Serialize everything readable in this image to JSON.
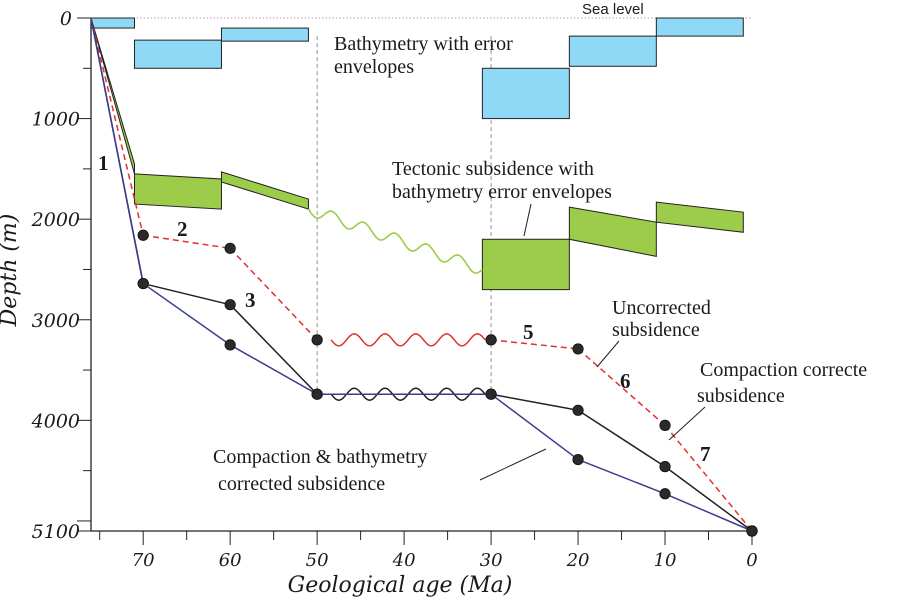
{
  "chart_data": {
    "type": "line",
    "xlabel": "Geological age (Ma)",
    "ylabel": "Depth (m)",
    "xlim": [
      76,
      0
    ],
    "ylim": [
      0,
      5100
    ],
    "x_ticks": [
      70,
      60,
      50,
      40,
      30,
      20,
      10,
      0
    ],
    "y_ticks": [
      0,
      1000,
      2000,
      3000,
      4000,
      5100
    ],
    "colors": {
      "bathymetry": "#8fd8f6",
      "tectonic": "#9ccc4a",
      "uncorrected": "#e03030",
      "compaction": "#222222",
      "comp_bathy": "#3a3d8f"
    },
    "bathymetry_envelopes": [
      {
        "x0": 76,
        "x1": 71,
        "top": 0,
        "bottom": 100
      },
      {
        "x0": 71,
        "x1": 61,
        "top": 220,
        "bottom": 500
      },
      {
        "x0": 61,
        "x1": 51,
        "top": 100,
        "bottom": 230
      },
      {
        "x0": 31,
        "x1": 21,
        "top": 500,
        "bottom": 1000
      },
      {
        "x0": 21,
        "x1": 11,
        "top": 180,
        "bottom": 480
      },
      {
        "x0": 11,
        "x1": 1,
        "top": 0,
        "bottom": 180
      }
    ],
    "tectonic_envelopes": [
      {
        "x0": 76,
        "x1": 71,
        "top0": 0,
        "top1": 1450,
        "bottom0": 0,
        "bottom1": 1550
      },
      {
        "x0": 71,
        "x1": 61,
        "top0": 1550,
        "top1": 1600,
        "bottom0": 1850,
        "bottom1": 1900
      },
      {
        "x0": 61,
        "x1": 51,
        "top0": 1530,
        "top1": 1800,
        "bottom0": 1630,
        "bottom1": 1900
      },
      {
        "x0": 31,
        "x1": 21,
        "top0": 2200,
        "top1": 2200,
        "bottom0": 2700,
        "bottom1": 2700
      },
      {
        "x0": 21,
        "x1": 11,
        "top0": 1880,
        "top1": 2030,
        "bottom0": 2200,
        "bottom1": 2370
      },
      {
        "x0": 11,
        "x1": 1,
        "top0": 1830,
        "top1": 1930,
        "bottom0": 2030,
        "bottom1": 2130
      }
    ],
    "tectonic_unconformity": {
      "x0": 51,
      "y0": 1900,
      "x1": 31,
      "y1": 2500
    },
    "series": [
      {
        "key": "uncorrected",
        "x": [
          76,
          70,
          60,
          50,
          30,
          20,
          10,
          0
        ],
        "y": [
          0,
          2160,
          2290,
          3200,
          3200,
          3290,
          4050,
          5100
        ],
        "unconformity": [
          50,
          30
        ],
        "dashed": true,
        "markers_from": 1
      },
      {
        "key": "compaction",
        "x": [
          76,
          70,
          60,
          50,
          30,
          20,
          10,
          0
        ],
        "y": [
          0,
          2640,
          2850,
          3740,
          3740,
          3900,
          4460,
          5100
        ],
        "unconformity": [
          50,
          30
        ],
        "dashed": false,
        "markers_from": 1
      },
      {
        "key": "comp_bathy",
        "x": [
          76,
          70,
          60,
          50,
          30,
          20,
          10,
          0
        ],
        "y": [
          0,
          2640,
          3250,
          3740,
          3740,
          4390,
          4730,
          5100
        ],
        "unconformity": null,
        "dashed": false,
        "markers_from": 1
      }
    ],
    "annotations": {
      "sea_level": "Sea level",
      "bathymetry_line1": "Bathymetry with error",
      "bathymetry_line2": "envelopes",
      "tectonic_line1": "Tectonic subsidence with",
      "tectonic_line2": "bathymetry error envelopes",
      "uncorrected_line1": "Uncorrected",
      "uncorrected_line2": "subsidence",
      "compaction_line1": "Compaction correcte",
      "compaction_line2": "subsidence",
      "comp_bathy_line1": "Compaction & bathymetry",
      "comp_bathy_line2": "corrected subsidence"
    },
    "segment_numbers": [
      "1",
      "2",
      "3",
      "5",
      "6",
      "7"
    ]
  }
}
